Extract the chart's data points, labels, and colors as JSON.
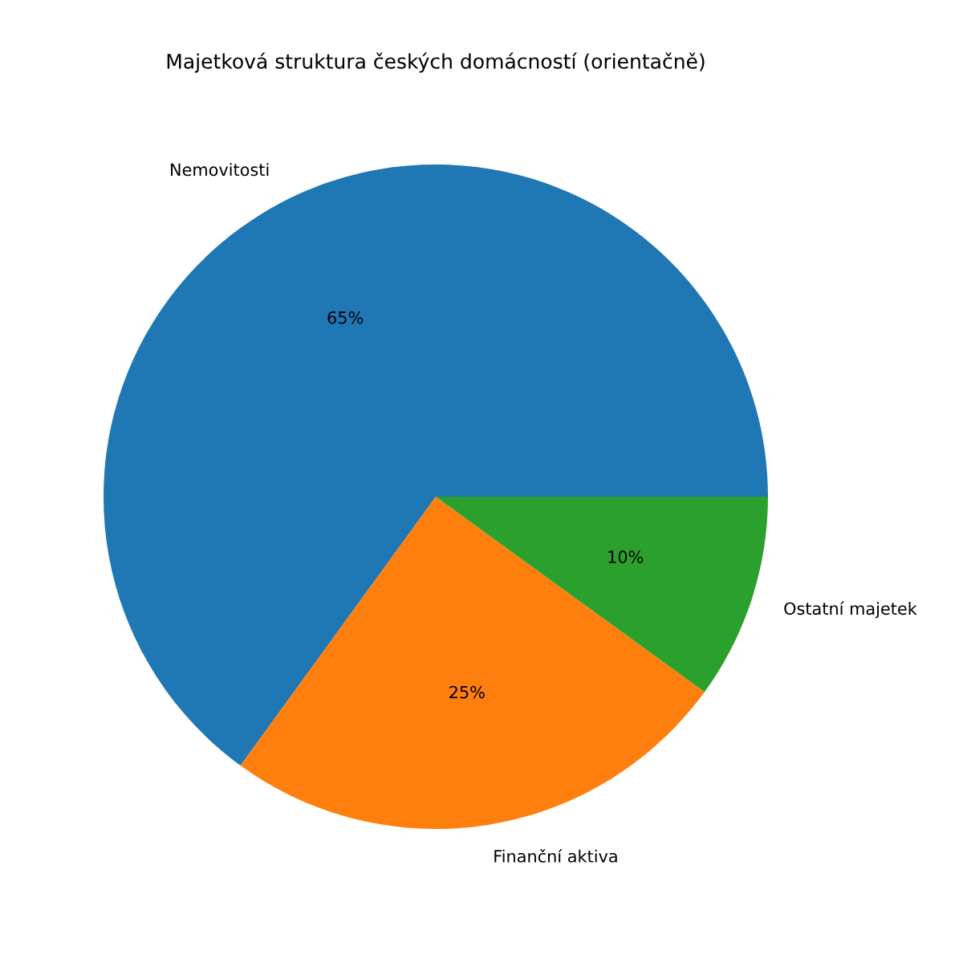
{
  "chart_data": {
    "type": "pie",
    "title": "Majetková struktura českých domácností (orientačně)",
    "categories": [
      "Nemovitosti",
      "Finanční aktiva",
      "Ostatní majetek"
    ],
    "values": [
      65,
      25,
      10
    ],
    "colors": [
      "#1f77b4",
      "#ff7f0e",
      "#2ca02c"
    ],
    "value_labels": [
      "65%",
      "25%",
      "10%"
    ]
  }
}
